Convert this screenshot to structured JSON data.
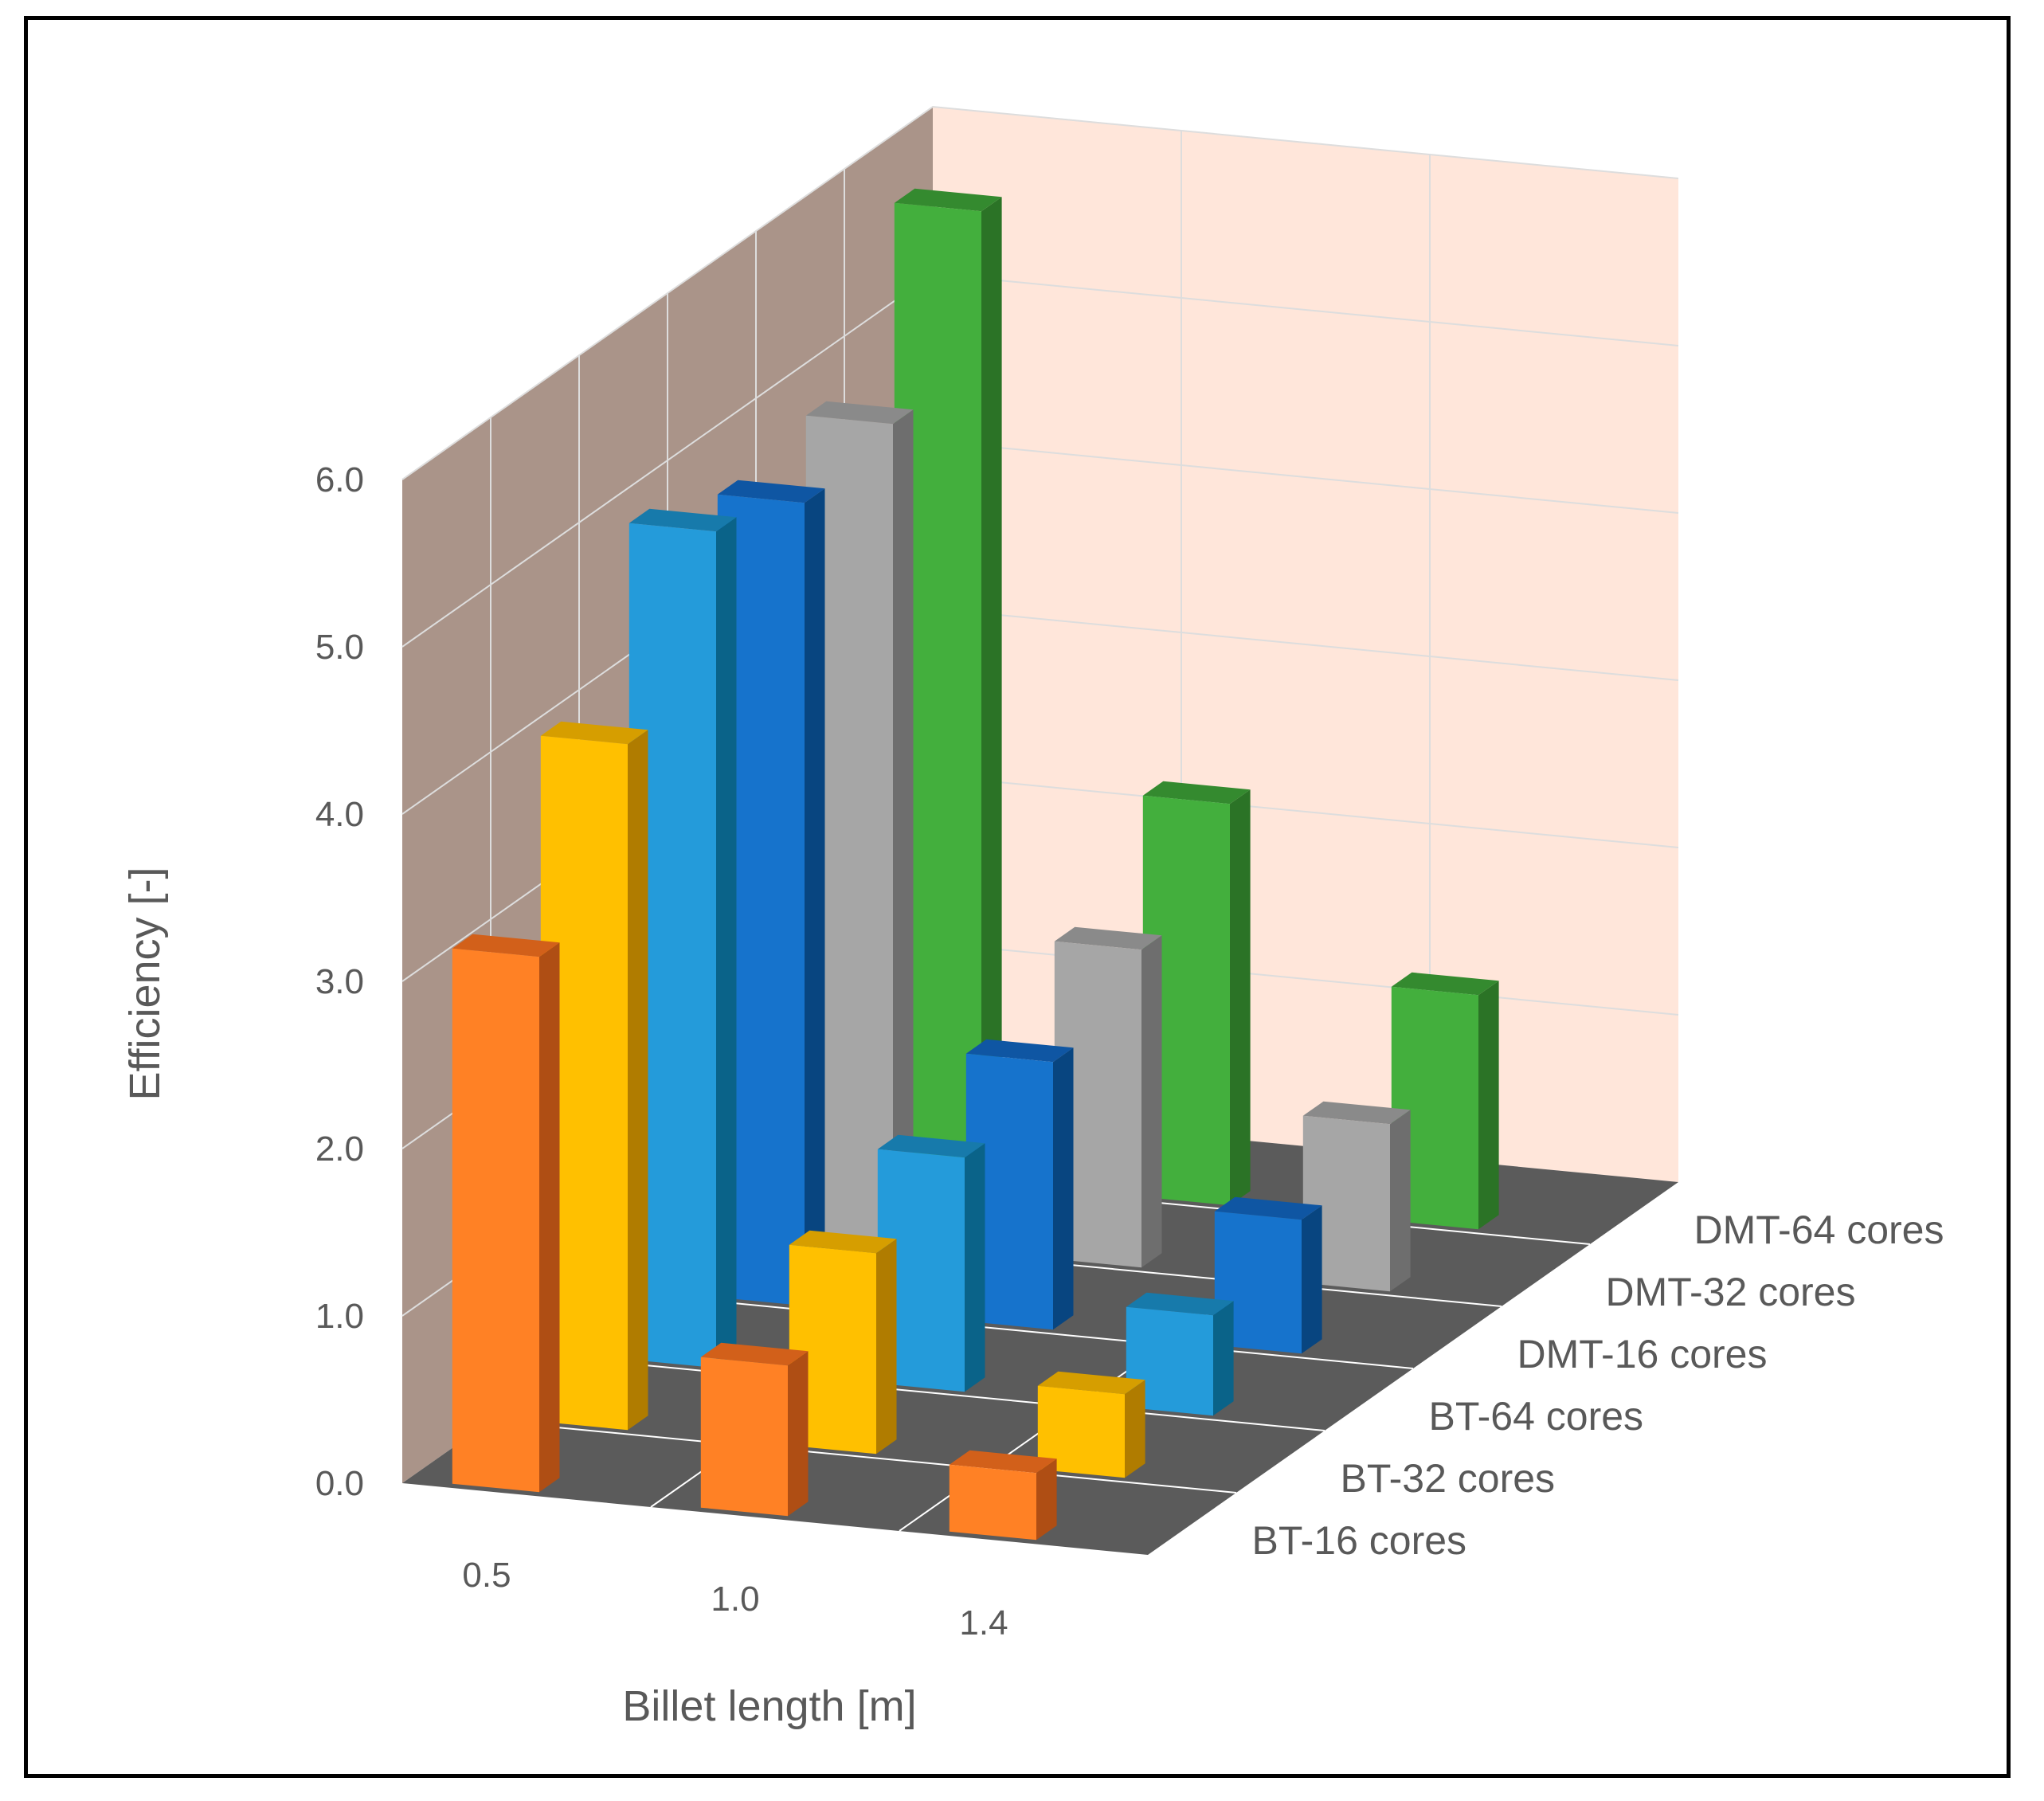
{
  "chart_data": {
    "type": "bar",
    "subtype": "3d-column",
    "title": "",
    "xlabel": "Billet length [m]",
    "ylabel": "Efficiency [-]",
    "categories": [
      "0.5",
      "1.0",
      "1.4"
    ],
    "ylim": [
      0,
      6
    ],
    "yticks": [
      "0.0",
      "1.0",
      "2.0",
      "3.0",
      "4.0",
      "5.0",
      "6.0"
    ],
    "series": [
      {
        "name": "BT-16 cores",
        "values": [
          3.2,
          0.9,
          0.4
        ],
        "color": "#FF8125",
        "top": "#D2601A",
        "side": "#AF4E14"
      },
      {
        "name": "BT-32 cores",
        "values": [
          4.1,
          1.2,
          0.5
        ],
        "color": "#FFC000",
        "top": "#D69E00",
        "side": "#B07C00"
      },
      {
        "name": "BT-64 cores",
        "values": [
          5.0,
          1.4,
          0.6
        ],
        "color": "#249BDA",
        "top": "#177AAB",
        "side": "#0A6389"
      },
      {
        "name": "DMT-16 cores",
        "values": [
          4.8,
          1.6,
          0.8
        ],
        "color": "#1673CC",
        "top": "#0F56A3",
        "side": "#084580"
      },
      {
        "name": "DMT-32 cores",
        "values": [
          4.9,
          1.9,
          1.0
        ],
        "color": "#A6A6A6",
        "top": "#8A8A8A",
        "side": "#6E6E6E"
      },
      {
        "name": "DMT-64 cores",
        "values": [
          5.8,
          2.4,
          1.4
        ],
        "color": "#43AF3D",
        "top": "#348A2F",
        "side": "#2B7326"
      }
    ],
    "walls": {
      "left": "#AA9489",
      "back": "#FFE6DA",
      "floor": "#5B5B5B",
      "grid": "#DDDDDD"
    }
  }
}
